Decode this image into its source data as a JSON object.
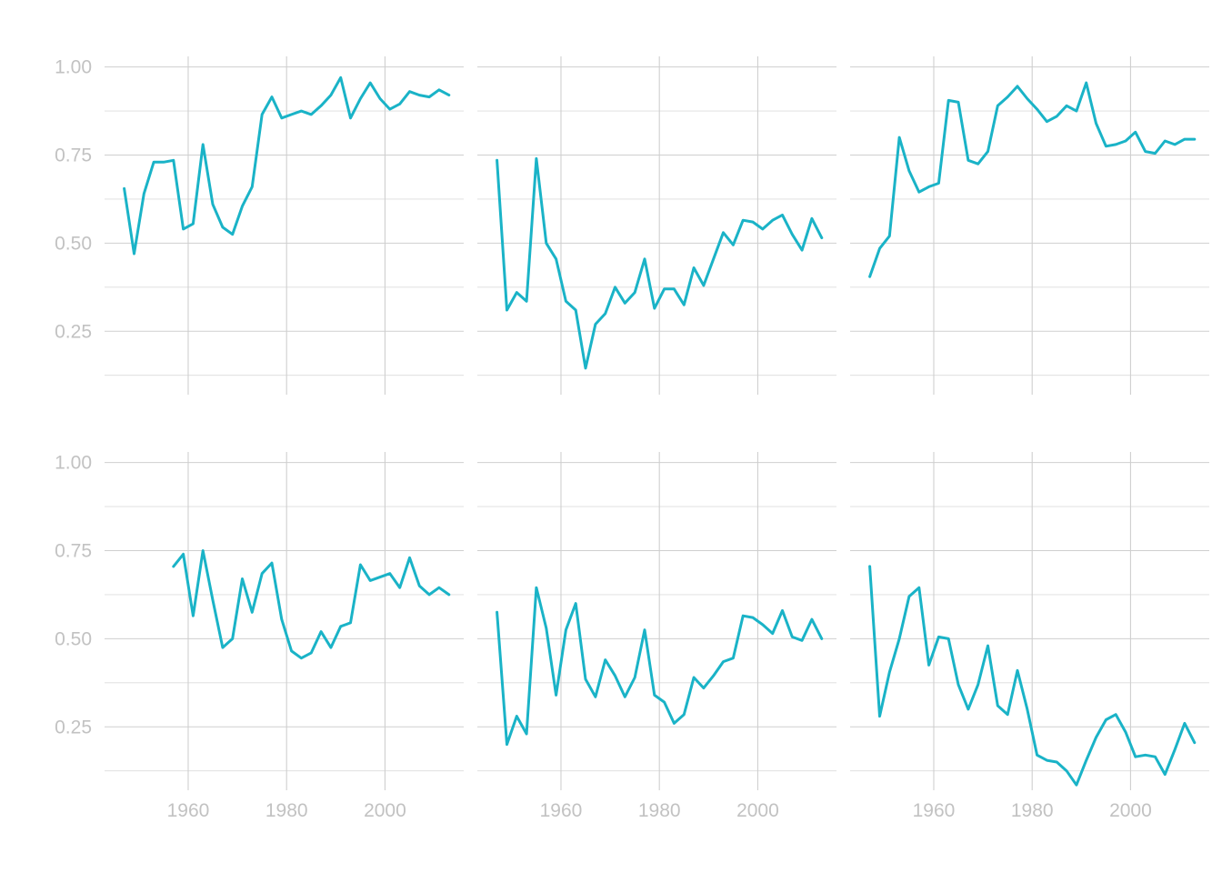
{
  "chart_data": {
    "type": "line",
    "layout": "facet-grid",
    "rows": 2,
    "cols": 3,
    "line_color": "#1ab3c7",
    "xlim": [
      1943,
      2016
    ],
    "ylim": [
      0.07,
      1.03
    ],
    "x_ticks": [
      1960,
      1980,
      2000
    ],
    "x_tick_labels": [
      "1960",
      "1980",
      "2000"
    ],
    "y_ticks": [
      0.25,
      0.5,
      0.75,
      1.0
    ],
    "y_tick_labels": [
      "0.25",
      "0.50",
      "0.75",
      "1.00"
    ],
    "y_axis_shown_on": "first-column",
    "x_axis_shown_on": "bottom-row",
    "grid": true,
    "panels": [
      {
        "x": [
          1947,
          1949,
          1951,
          1953,
          1955,
          1957,
          1959,
          1961,
          1963,
          1965,
          1967,
          1969,
          1971,
          1973,
          1975,
          1977,
          1979,
          1981,
          1983,
          1985,
          1987,
          1989,
          1991,
          1993,
          1995,
          1997,
          1999,
          2001,
          2003,
          2005,
          2007,
          2009,
          2011,
          2013
        ],
        "y": [
          0.655,
          0.47,
          0.64,
          0.73,
          0.73,
          0.735,
          0.54,
          0.555,
          0.78,
          0.61,
          0.545,
          0.525,
          0.605,
          0.66,
          0.865,
          0.915,
          0.855,
          0.865,
          0.875,
          0.865,
          0.89,
          0.92,
          0.97,
          0.855,
          0.91,
          0.955,
          0.91,
          0.88,
          0.895,
          0.93,
          0.92,
          0.915,
          0.935,
          0.92
        ]
      },
      {
        "x": [
          1947,
          1949,
          1951,
          1953,
          1955,
          1957,
          1959,
          1961,
          1963,
          1965,
          1967,
          1969,
          1971,
          1973,
          1975,
          1977,
          1979,
          1981,
          1983,
          1985,
          1987,
          1989,
          1991,
          1993,
          1995,
          1997,
          1999,
          2001,
          2003,
          2005,
          2007,
          2009,
          2011,
          2013
        ],
        "y": [
          0.735,
          0.31,
          0.36,
          0.335,
          0.74,
          0.5,
          0.455,
          0.335,
          0.31,
          0.145,
          0.27,
          0.3,
          0.375,
          0.33,
          0.36,
          0.455,
          0.315,
          0.37,
          0.37,
          0.325,
          0.43,
          0.38,
          0.455,
          0.53,
          0.495,
          0.565,
          0.56,
          0.54,
          0.565,
          0.58,
          0.525,
          0.48,
          0.57,
          0.515
        ]
      },
      {
        "x": [
          1947,
          1949,
          1951,
          1953,
          1955,
          1957,
          1959,
          1961,
          1963,
          1965,
          1967,
          1969,
          1971,
          1973,
          1975,
          1977,
          1979,
          1981,
          1983,
          1985,
          1987,
          1989,
          1991,
          1993,
          1995,
          1997,
          1999,
          2001,
          2003,
          2005,
          2007,
          2009,
          2011,
          2013
        ],
        "y": [
          0.405,
          0.485,
          0.52,
          0.8,
          0.705,
          0.645,
          0.66,
          0.67,
          0.905,
          0.9,
          0.735,
          0.725,
          0.76,
          0.89,
          0.915,
          0.945,
          0.91,
          0.88,
          0.845,
          0.86,
          0.89,
          0.875,
          0.955,
          0.84,
          0.775,
          0.78,
          0.79,
          0.815,
          0.76,
          0.755,
          0.79,
          0.78,
          0.795,
          0.795
        ]
      },
      {
        "x": [
          1957,
          1959,
          1961,
          1963,
          1965,
          1967,
          1969,
          1971,
          1973,
          1975,
          1977,
          1979,
          1981,
          1983,
          1985,
          1987,
          1989,
          1991,
          1993,
          1995,
          1997,
          1999,
          2001,
          2003,
          2005,
          2007,
          2009,
          2011,
          2013
        ],
        "y": [
          0.705,
          0.74,
          0.565,
          0.75,
          0.61,
          0.475,
          0.5,
          0.67,
          0.575,
          0.685,
          0.715,
          0.555,
          0.465,
          0.445,
          0.46,
          0.52,
          0.475,
          0.535,
          0.545,
          0.71,
          0.665,
          0.675,
          0.685,
          0.645,
          0.73,
          0.65,
          0.625,
          0.645,
          0.625
        ]
      },
      {
        "x": [
          1947,
          1949,
          1951,
          1953,
          1955,
          1957,
          1959,
          1961,
          1963,
          1965,
          1967,
          1969,
          1971,
          1973,
          1975,
          1977,
          1979,
          1981,
          1983,
          1985,
          1987,
          1989,
          1991,
          1993,
          1995,
          1997,
          1999,
          2001,
          2003,
          2005,
          2007,
          2009,
          2011,
          2013
        ],
        "y": [
          0.575,
          0.2,
          0.28,
          0.23,
          0.645,
          0.53,
          0.34,
          0.525,
          0.6,
          0.385,
          0.335,
          0.44,
          0.395,
          0.335,
          0.39,
          0.525,
          0.34,
          0.32,
          0.26,
          0.285,
          0.39,
          0.36,
          0.395,
          0.435,
          0.445,
          0.565,
          0.56,
          0.54,
          0.515,
          0.58,
          0.505,
          0.495,
          0.555,
          0.5
        ]
      },
      {
        "x": [
          1947,
          1949,
          1951,
          1953,
          1955,
          1957,
          1959,
          1961,
          1963,
          1965,
          1967,
          1969,
          1971,
          1973,
          1975,
          1977,
          1979,
          1981,
          1983,
          1985,
          1987,
          1989,
          1991,
          1993,
          1995,
          1997,
          1999,
          2001,
          2003,
          2005,
          2007,
          2009,
          2011,
          2013
        ],
        "y": [
          0.705,
          0.28,
          0.405,
          0.5,
          0.62,
          0.645,
          0.425,
          0.505,
          0.5,
          0.37,
          0.3,
          0.37,
          0.48,
          0.31,
          0.285,
          0.41,
          0.3,
          0.17,
          0.155,
          0.15,
          0.125,
          0.085,
          0.155,
          0.22,
          0.27,
          0.285,
          0.235,
          0.165,
          0.17,
          0.165,
          0.115,
          0.185,
          0.26,
          0.205
        ]
      }
    ]
  }
}
